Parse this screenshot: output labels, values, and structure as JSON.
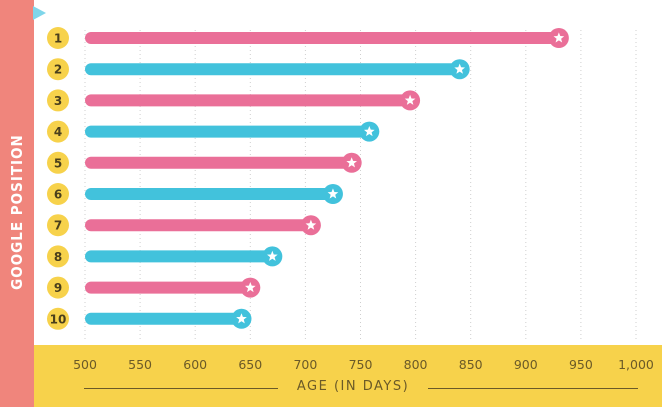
{
  "chart_data": {
    "type": "bar",
    "orientation": "horizontal",
    "categories": [
      "1",
      "2",
      "3",
      "4",
      "5",
      "6",
      "7",
      "8",
      "9",
      "10"
    ],
    "values": [
      930,
      840,
      795,
      758,
      742,
      725,
      705,
      670,
      650,
      642
    ],
    "colors": [
      "#ea6f98",
      "#42c2dc",
      "#ea6f98",
      "#42c2dc",
      "#ea6f98",
      "#42c2dc",
      "#ea6f98",
      "#42c2dc",
      "#ea6f98",
      "#42c2dc"
    ],
    "xlabel": "AGE (IN DAYS)",
    "ylabel": "GOOGLE POSITION",
    "xlim": [
      500,
      1000
    ],
    "xticks": [
      "500",
      "550",
      "600",
      "650",
      "700",
      "750",
      "800",
      "850",
      "900",
      "950",
      "1,000"
    ],
    "grid": "vertical dotted",
    "end_marker": "star",
    "label_badge_color": "#f7d24b",
    "side_panel_color": "#f0857c",
    "axis_band_color": "#f7d24b"
  }
}
